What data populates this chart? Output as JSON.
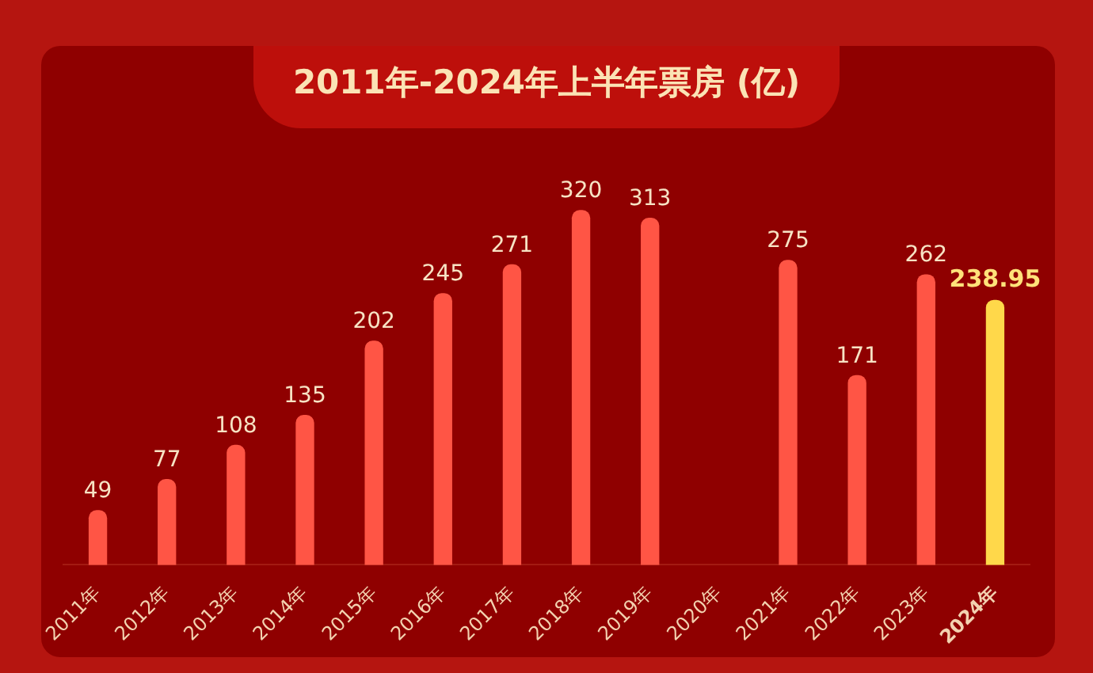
{
  "chart_data": {
    "type": "bar",
    "title": "2011年-2024年上半年票房 (亿)",
    "categories": [
      "2011年",
      "2012年",
      "2013年",
      "2014年",
      "2015年",
      "2016年",
      "2017年",
      "2018年",
      "2019年",
      "2020年",
      "2021年",
      "2022年",
      "2023年",
      "2024年"
    ],
    "values": [
      49,
      77,
      108,
      135,
      202,
      245,
      271,
      320,
      313,
      null,
      275,
      171,
      262,
      238.95
    ],
    "colors": [
      "#ff5545",
      "#ff5545",
      "#ff5545",
      "#ff5545",
      "#ff5545",
      "#ff5545",
      "#ff5545",
      "#ff5545",
      "#ff5545",
      "#ff5545",
      "#ff5545",
      "#ff5545",
      "#ff5545",
      "#ffd84a"
    ],
    "data_labels": true,
    "grid": false,
    "legend": false
  }
}
